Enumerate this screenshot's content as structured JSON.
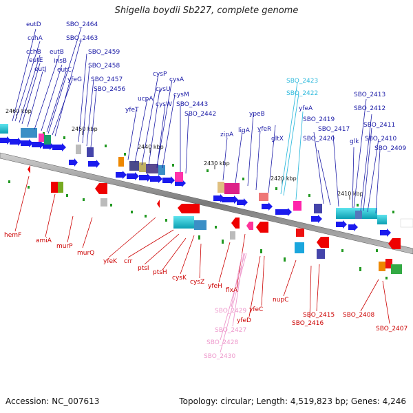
{
  "title": "Shigella boydii Sb227, complete genome",
  "footer": {
    "accession": "Accession: NC_007613",
    "topology": "Topology: circular; Length: 4,519,823 bp; Genes: 4,246"
  },
  "colors": {
    "top_label": "#1a1aa6",
    "top_label_highlight": "#33bbdd",
    "bottom_label": "#cc0000",
    "bottom_label_highlight": "#ee99cc",
    "backbone": "#777777"
  },
  "ruler": [
    "2460 kbp",
    "2450 kbp",
    "2440 kbp",
    "2430 kbp",
    "2420 kbp",
    "2410 kbp"
  ],
  "top_labels": [
    "eutD",
    "cchA",
    "cchB",
    "eutE",
    "eutJ",
    "eutB",
    "insB",
    "eutC",
    "yfeG",
    "SBO_2464",
    "SBO_2463",
    "SBO_2459",
    "SBO_2458",
    "SBO_2457",
    "SBO_2456",
    "cysP",
    "ucpA",
    "cysA",
    "cysU",
    "cysM",
    "yfeT",
    "cysW",
    "SBO_2443",
    "SBO_2442",
    "zipA",
    "ligA",
    "ypeB",
    "yfeR",
    "gltX",
    "SBO_2423",
    "SBO_2422",
    "yfeA",
    "SBO_2419",
    "SBO_2420",
    "SBO_2417",
    "SBO_2413",
    "SBO_2412",
    "SBO_2411",
    "glk",
    "SBO_2410",
    "SBO_2409"
  ],
  "bottom_labels": [
    "hemF",
    "amiA",
    "murP",
    "murQ",
    "yfeK",
    "crr",
    "ptsI",
    "ptsH",
    "cysK",
    "cysZ",
    "yfeH",
    "flxA",
    "SBO_2429",
    "SBO_2427",
    "SBO_2428",
    "SBO_2430",
    "yfeD",
    "yfeC",
    "nupC",
    "SBO_2416",
    "SBO_2415",
    "SBO_2408",
    "SBO_2407"
  ]
}
